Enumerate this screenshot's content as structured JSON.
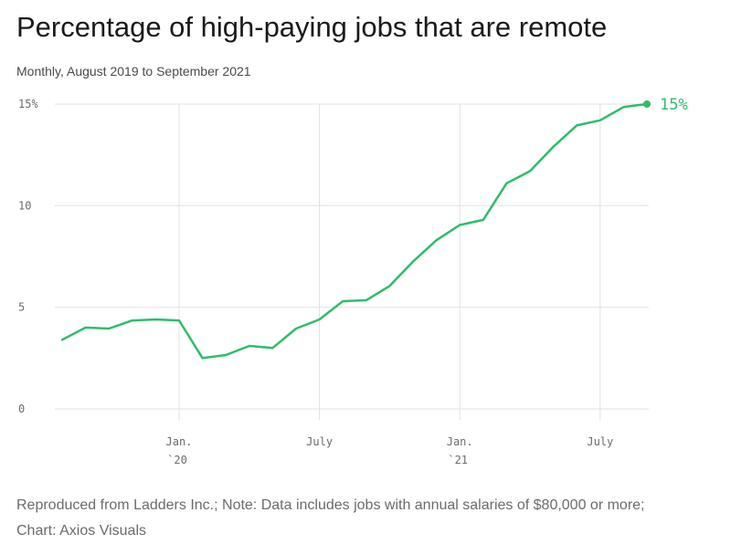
{
  "title": "Percentage of high-paying jobs that are remote",
  "subtitle": "Monthly, August 2019 to September 2021",
  "note": "Reproduced from Ladders Inc.; Note: Data includes jobs with annual salaries of $80,000 or more; Chart: Axios Visuals",
  "colors": {
    "line": "#2ebd6b",
    "grid": "#e2e2e2",
    "text": "#6b6b6b"
  },
  "chart_data": {
    "type": "line",
    "title": "Percentage of high-paying jobs that are remote",
    "subtitle": "Monthly, August 2019 to September 2021",
    "xlabel": "",
    "ylabel": "",
    "ylim": [
      0,
      15
    ],
    "grid": true,
    "y_ticks": [
      {
        "value": 15,
        "label": "15%"
      },
      {
        "value": 10,
        "label": "10"
      },
      {
        "value": 5,
        "label": "5"
      },
      {
        "value": 0,
        "label": "0"
      }
    ],
    "x_ticks": [
      {
        "x": "2020-01",
        "label": "Jan.",
        "sublabel": "`20"
      },
      {
        "x": "2020-07",
        "label": "July",
        "sublabel": ""
      },
      {
        "x": "2021-01",
        "label": "Jan.",
        "sublabel": "`21"
      },
      {
        "x": "2021-07",
        "label": "July",
        "sublabel": ""
      }
    ],
    "end_label": "15%",
    "series": [
      {
        "x": [
          "2019-08",
          "2019-09",
          "2019-10",
          "2019-11",
          "2019-12",
          "2020-01",
          "2020-02",
          "2020-03",
          "2020-04",
          "2020-05",
          "2020-06",
          "2020-07",
          "2020-08",
          "2020-09",
          "2020-10",
          "2020-11",
          "2020-12",
          "2021-01",
          "2021-02",
          "2021-03",
          "2021-04",
          "2021-05",
          "2021-06",
          "2021-07",
          "2021-08",
          "2021-09"
        ],
        "values": [
          3.4,
          4.0,
          3.95,
          4.35,
          4.4,
          4.35,
          2.5,
          2.65,
          3.1,
          3.0,
          3.95,
          4.4,
          5.3,
          5.35,
          6.05,
          7.25,
          8.3,
          9.05,
          9.3,
          11.1,
          11.7,
          12.9,
          13.95,
          14.2,
          14.85,
          15.0
        ]
      }
    ]
  }
}
